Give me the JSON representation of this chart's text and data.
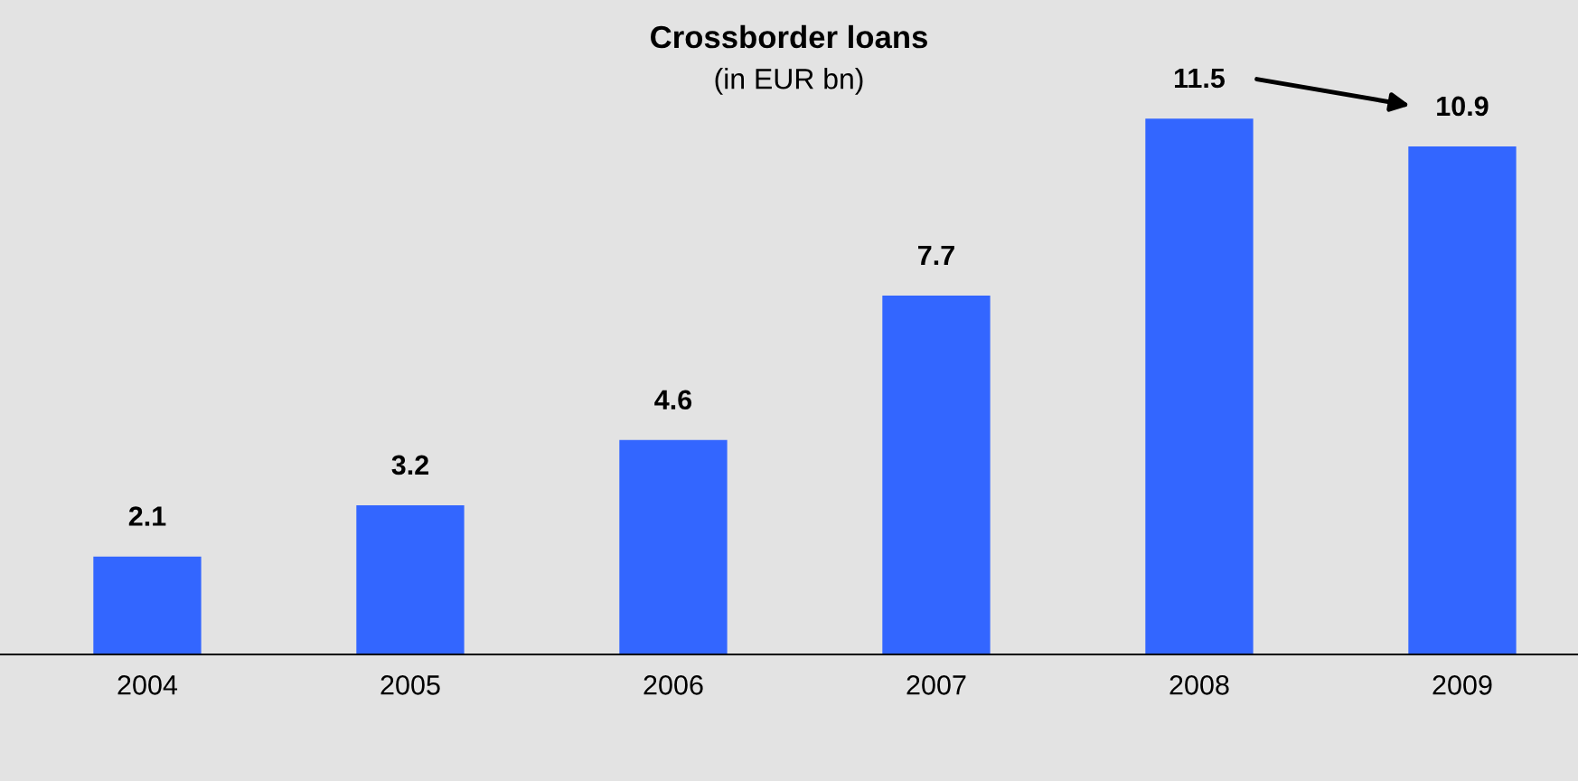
{
  "chart_data": {
    "type": "bar",
    "title": "Crossborder loans",
    "subtitle": "(in EUR bn)",
    "categories": [
      "2004",
      "2005",
      "2006",
      "2007",
      "2008",
      "2009"
    ],
    "values": [
      2.1,
      3.2,
      4.6,
      7.7,
      11.5,
      10.9
    ],
    "color": "#3366ff",
    "data_labels": true,
    "grid": false,
    "legend": false
  }
}
